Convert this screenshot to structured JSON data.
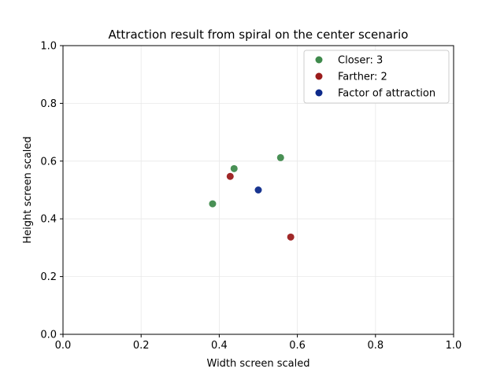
{
  "chart_data": {
    "type": "scatter",
    "title": "Attraction result from spiral on the center scenario",
    "xlabel": "Width screen scaled",
    "ylabel": "Height screen scaled",
    "xlim": [
      0,
      1
    ],
    "ylim": [
      0,
      1
    ],
    "xticks": [
      "0.0",
      "0.2",
      "0.4",
      "0.6",
      "0.8",
      "1.0"
    ],
    "yticks": [
      "0.0",
      "0.2",
      "0.4",
      "0.6",
      "0.8",
      "1.0"
    ],
    "grid": true,
    "legend_position": "top-right",
    "series": [
      {
        "name": "Closer: 3",
        "color": "#3f8a4c",
        "points": [
          [
            0.383,
            0.452
          ],
          [
            0.438,
            0.574
          ],
          [
            0.557,
            0.612
          ]
        ]
      },
      {
        "name": "Farther: 2",
        "color": "#9b1c1c",
        "points": [
          [
            0.428,
            0.547
          ],
          [
            0.583,
            0.337
          ]
        ]
      },
      {
        "name": "Factor of attraction",
        "color": "#0d2a8a",
        "points": [
          [
            0.5,
            0.5
          ]
        ]
      }
    ]
  }
}
